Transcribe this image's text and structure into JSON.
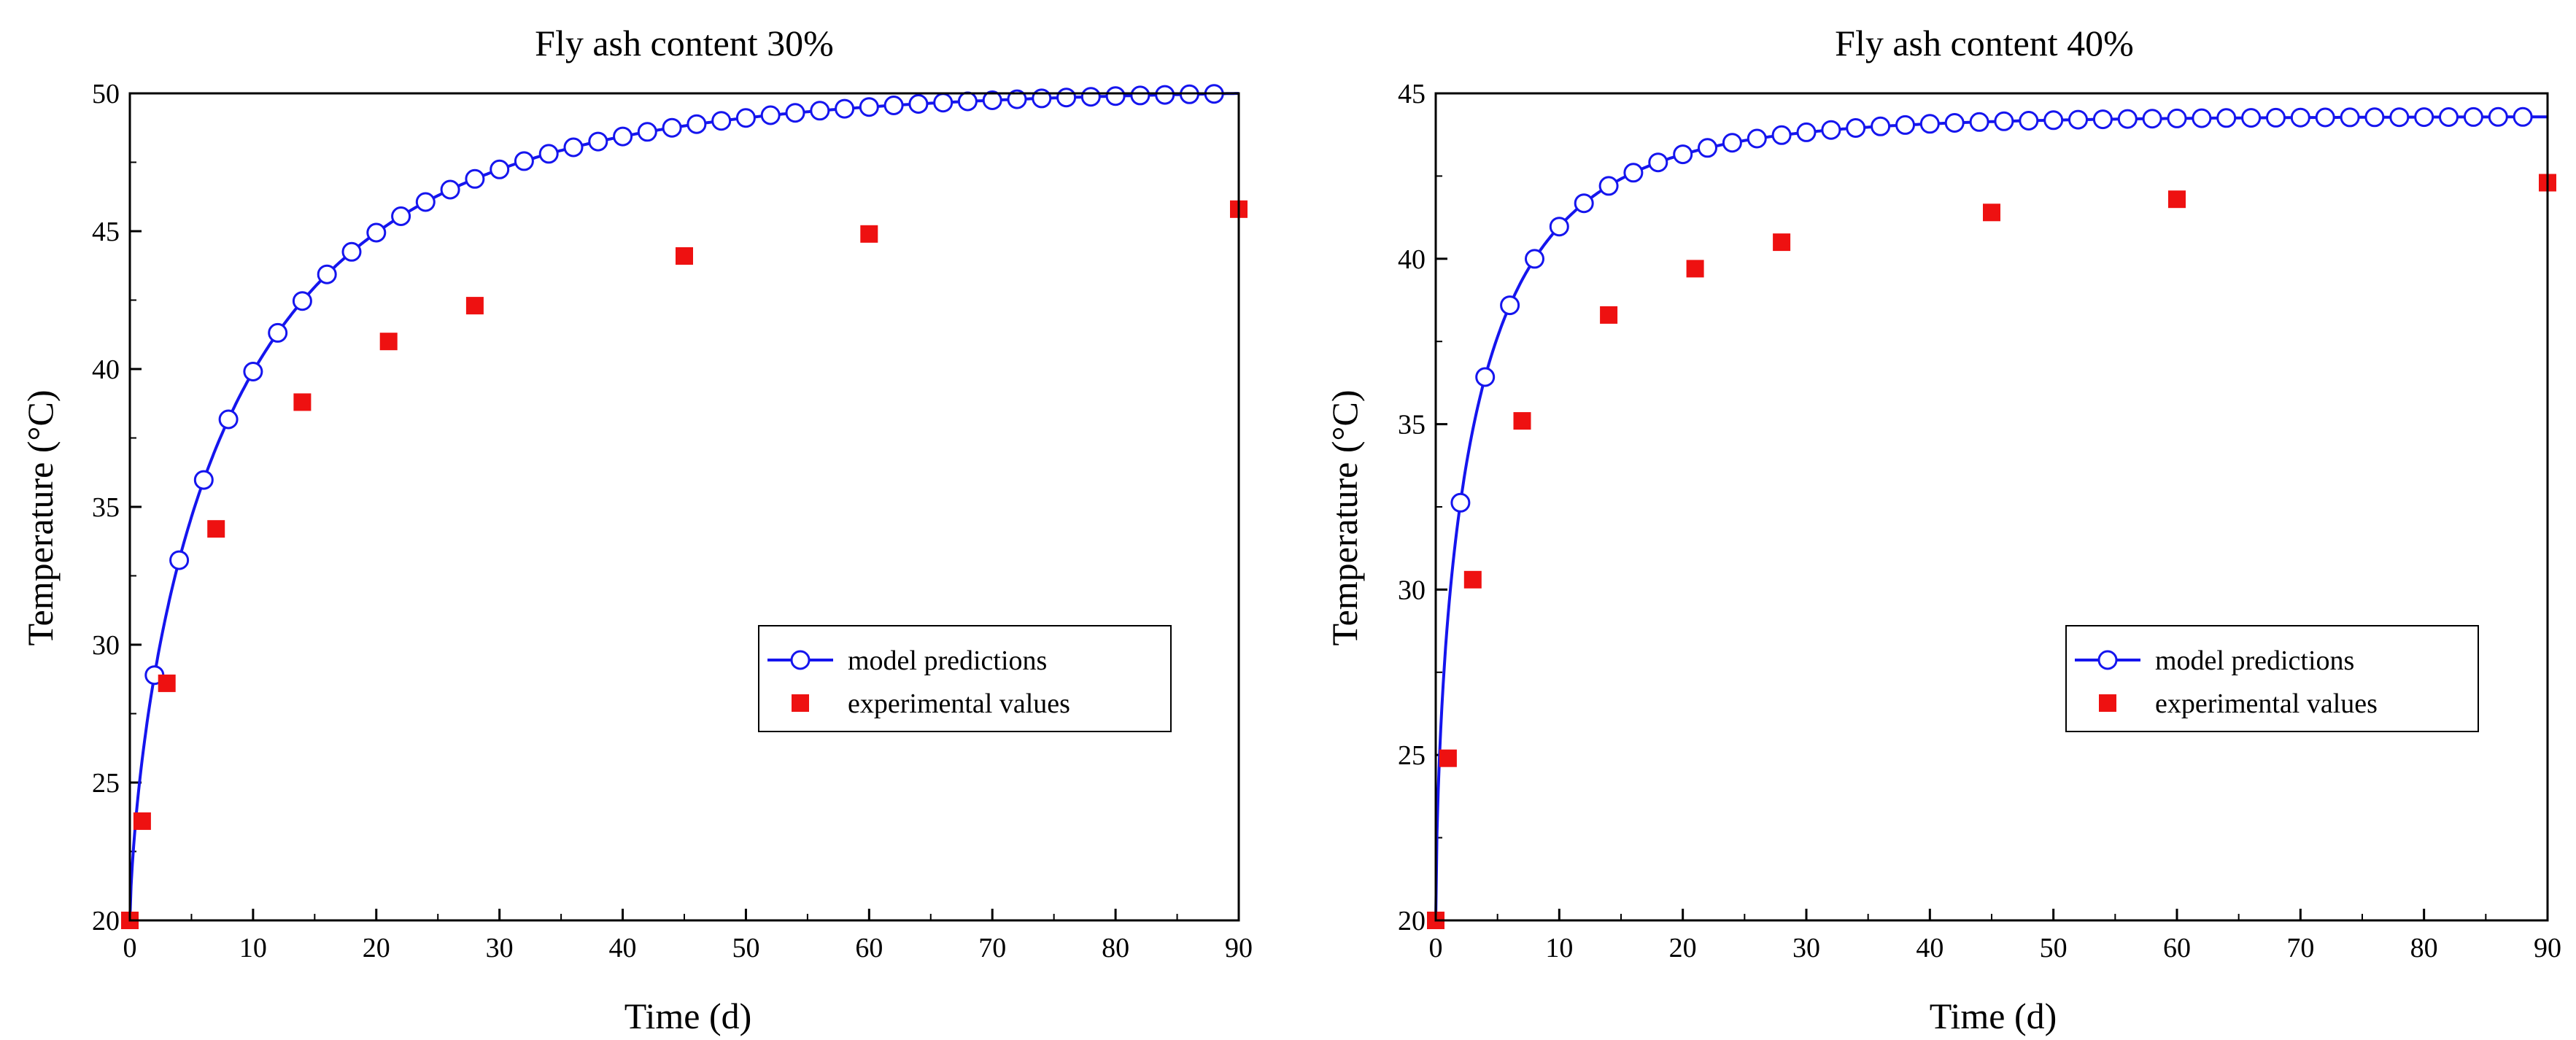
{
  "colors": {
    "model": "#1515ee",
    "experimental": "#ee1111",
    "axis": "#000000",
    "marker_fill": "#ffffff"
  },
  "chart_data": [
    {
      "type": "scatter",
      "title": "Fly ash content 30%",
      "xlabel": "Time (d)",
      "ylabel": "Temperature (°C)",
      "xlim": [
        0,
        90
      ],
      "ylim": [
        20,
        50
      ],
      "xticks": [
        0,
        10,
        20,
        30,
        40,
        50,
        60,
        70,
        80,
        90
      ],
      "yticks": [
        20,
        25,
        30,
        35,
        40,
        45,
        50
      ],
      "legend_position": "center-right",
      "series": [
        {
          "name": "model predictions",
          "style": "line-open-circle",
          "model": {
            "T0": 20,
            "Tmax": 50.2,
            "tau": 9.0,
            "beta": 0.7
          }
        },
        {
          "name": "experimental values",
          "style": "filled-square",
          "x": [
            0,
            1,
            3,
            7,
            14,
            21,
            28,
            45,
            60,
            90
          ],
          "y": [
            20.0,
            23.6,
            28.6,
            34.2,
            38.8,
            41.0,
            42.3,
            44.1,
            44.9,
            45.8
          ]
        }
      ]
    },
    {
      "type": "scatter",
      "title": "Fly ash content 40%",
      "xlabel": "Time (d)",
      "ylabel": "Temperature (°C)",
      "xlim": [
        0,
        90
      ],
      "ylim": [
        20,
        45
      ],
      "xticks": [
        0,
        10,
        20,
        30,
        40,
        50,
        60,
        70,
        80,
        90
      ],
      "yticks": [
        20,
        25,
        30,
        35,
        40,
        45
      ],
      "legend_position": "center-right",
      "series": [
        {
          "name": "model predictions",
          "style": "line-open-circle",
          "model": {
            "T0": 20,
            "Tmax": 44.3,
            "tau": 3.3,
            "beta": 0.62
          }
        },
        {
          "name": "experimental values",
          "style": "filled-square",
          "x": [
            0,
            1,
            3,
            7,
            14,
            21,
            28,
            45,
            60,
            90
          ],
          "y": [
            20.0,
            24.9,
            30.3,
            35.1,
            38.3,
            39.7,
            40.5,
            41.4,
            41.8,
            42.3
          ]
        }
      ]
    }
  ]
}
